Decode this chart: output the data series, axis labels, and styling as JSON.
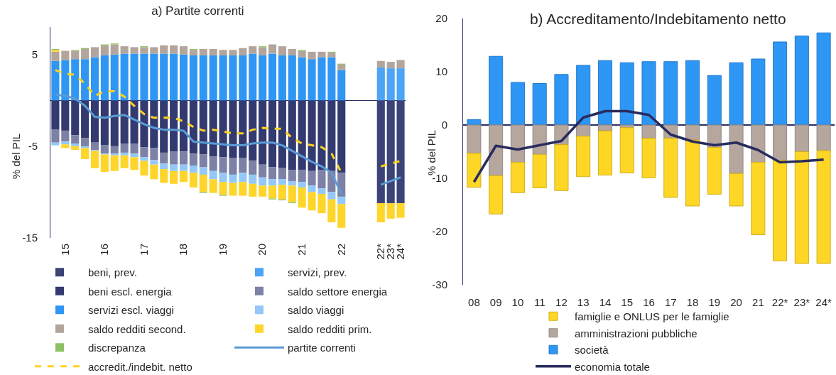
{
  "chart_data": [
    {
      "type": "bar",
      "title": "a) Partite correnti",
      "ylabel": "% del PIL",
      "stacked": true,
      "legend": "bottom",
      "ylim": [
        -15,
        8
      ],
      "yticks": [
        -15,
        -5,
        5
      ],
      "categories": [
        null,
        "15",
        null,
        null,
        null,
        "16",
        null,
        null,
        null,
        "17",
        null,
        null,
        null,
        "18",
        null,
        null,
        null,
        "19",
        null,
        null,
        null,
        "20",
        null,
        null,
        null,
        "21",
        null,
        null,
        null,
        "22",
        null,
        null,
        null,
        "22*",
        "23*",
        "24*"
      ],
      "series": [
        {
          "name": "beni, prev.",
          "color": "#3b4377",
          "values": [
            null,
            null,
            null,
            null,
            null,
            null,
            null,
            null,
            null,
            null,
            null,
            null,
            null,
            null,
            null,
            null,
            null,
            null,
            null,
            null,
            null,
            null,
            null,
            null,
            null,
            null,
            null,
            null,
            null,
            null,
            null,
            null,
            null,
            -11.2,
            -11.2,
            -11.2
          ]
        },
        {
          "name": "servizi, prev.",
          "color": "#4da3f5",
          "values": [
            null,
            null,
            null,
            null,
            null,
            null,
            null,
            null,
            null,
            null,
            null,
            null,
            null,
            null,
            null,
            null,
            null,
            null,
            null,
            null,
            null,
            null,
            null,
            null,
            null,
            null,
            null,
            null,
            null,
            null,
            null,
            null,
            null,
            3.6,
            3.5,
            3.5
          ]
        },
        {
          "name": "beni escl. energia",
          "color": "#323a70",
          "values": [
            -3.2,
            -3.3,
            -3.8,
            -4.1,
            -4.6,
            -4.9,
            -5.0,
            -4.7,
            -4.7,
            -5.1,
            -5.2,
            -5.7,
            -5.6,
            -5.6,
            -5.8,
            -5.9,
            -6.1,
            -6.2,
            -6.3,
            -6.3,
            -6.6,
            -7.0,
            -7.3,
            -7.4,
            -7.6,
            -7.6,
            -7.7,
            -7.6,
            -7.7,
            -7.9,
            null,
            null,
            null,
            null,
            null,
            null
          ]
        },
        {
          "name": "saldo settore energia",
          "color": "#7c81a5",
          "values": [
            -1.4,
            -1.2,
            -0.9,
            -0.9,
            -0.8,
            -0.9,
            -0.8,
            -1.0,
            -1.1,
            -1.1,
            -1.3,
            -1.2,
            -1.4,
            -1.4,
            -1.3,
            -1.4,
            -1.6,
            -1.7,
            -1.8,
            -1.6,
            -1.5,
            -1.4,
            -1.3,
            -1.2,
            -1.2,
            -1.3,
            -1.6,
            -2.0,
            -2.3,
            -2.6,
            null,
            null,
            null,
            null,
            null,
            null
          ]
        },
        {
          "name": "servizi escl. viaggi",
          "color": "#2f96f4",
          "values": [
            4.3,
            4.4,
            4.5,
            4.5,
            4.7,
            4.9,
            5.0,
            5.1,
            5.1,
            5.1,
            5.1,
            5.1,
            5.1,
            5.0,
            4.9,
            4.9,
            4.9,
            4.9,
            4.9,
            4.9,
            5.1,
            4.9,
            5.1,
            4.9,
            4.9,
            4.7,
            4.5,
            4.7,
            4.7,
            3.3,
            null,
            null,
            null,
            null,
            null,
            null
          ]
        },
        {
          "name": "saldo viaggi",
          "color": "#93c8f8",
          "values": [
            -0.3,
            -0.3,
            -0.3,
            -0.2,
            -0.1,
            -0.1,
            -0.2,
            -0.3,
            -0.4,
            -0.4,
            -0.5,
            -0.6,
            -0.7,
            -0.7,
            -0.8,
            -0.8,
            -0.9,
            -1.0,
            -0.9,
            -1.0,
            -1.0,
            -0.9,
            -0.7,
            -0.6,
            -0.5,
            -0.6,
            -0.7,
            -0.6,
            -0.8,
            -0.8,
            null,
            null,
            null,
            null,
            null,
            null
          ]
        },
        {
          "name": "saldo redditi second.",
          "color": "#b3a59c",
          "values": [
            1.0,
            1.0,
            0.9,
            1.1,
            1.1,
            1.1,
            1.1,
            0.8,
            0.7,
            0.7,
            0.7,
            0.9,
            0.9,
            0.9,
            0.6,
            0.7,
            0.7,
            0.6,
            0.6,
            0.8,
            0.8,
            0.9,
            1.0,
            1.0,
            0.7,
            0.7,
            0.8,
            0.6,
            0.5,
            0.6,
            null,
            null,
            null,
            0.7,
            0.7,
            0.9
          ]
        },
        {
          "name": "saldo redditi prim.",
          "color": "#fed52b",
          "values": [
            0.2,
            -0.4,
            -0.4,
            -1.2,
            -1.9,
            -1.9,
            -1.7,
            -1.4,
            -1.4,
            -1.6,
            -1.6,
            -1.5,
            -1.4,
            -1.2,
            -1.6,
            -1.9,
            -1.5,
            -1.4,
            -1.4,
            -1.5,
            -1.4,
            -1.2,
            -1.4,
            -1.6,
            -1.8,
            -2.2,
            -2.0,
            -2.1,
            -2.5,
            -2.6,
            null,
            null,
            null,
            -2.1,
            -1.7,
            -1.6
          ]
        },
        {
          "name": "discrepanza",
          "color": "#8fc065",
          "values": [
            0.1,
            null,
            0.1,
            0.1,
            null,
            0.1,
            0.1,
            null,
            null,
            0.1,
            null,
            null,
            null,
            null,
            0.1,
            -0.1,
            null,
            -0.1,
            null,
            null,
            null,
            0.1,
            -0.1,
            -0.1,
            -0.1,
            0.1,
            null,
            null,
            0.1,
            0.1,
            null,
            null,
            null,
            null,
            null,
            null
          ]
        },
        {
          "name": "partite correnti",
          "type": "line",
          "color": "#5b9bd5",
          "values": [
            0.6,
            0.5,
            0.2,
            -0.6,
            -1.8,
            -1.9,
            -1.7,
            -1.6,
            -2.1,
            -2.6,
            -3.0,
            -3.2,
            -3.2,
            -3.3,
            -4.5,
            -4.6,
            -4.7,
            -4.8,
            -4.9,
            -4.9,
            -4.7,
            -4.6,
            -4.6,
            -4.9,
            -5.5,
            -6.1,
            -6.7,
            -7.2,
            -7.9,
            -10.2,
            null,
            null,
            null,
            -9.2,
            -8.8,
            -8.4
          ]
        },
        {
          "name": "accredit./indebit. netto",
          "type": "line",
          "line_style": "dashed",
          "color": "#ffd21f",
          "values": [
            3.3,
            2.9,
            2.8,
            1.8,
            0.5,
            1.0,
            1.0,
            0.4,
            -0.6,
            -1.5,
            -1.9,
            -1.9,
            -1.9,
            -2.3,
            -2.9,
            -3.3,
            -3.2,
            -3.4,
            -3.6,
            -3.6,
            -3.2,
            -3.0,
            -3.1,
            -3.1,
            -4.1,
            -4.7,
            -4.9,
            -5.1,
            -5.8,
            -7.9,
            null,
            null,
            null,
            -7.2,
            -6.9,
            -6.6
          ]
        }
      ]
    },
    {
      "type": "bar",
      "title": "b) Accreditamento/Indebitamento netto",
      "ylabel": "% del PIL",
      "stacked": true,
      "legend": "bottom",
      "ylim": [
        -30,
        20
      ],
      "yticks": [
        -30,
        -20,
        -10,
        0,
        10,
        20
      ],
      "categories": [
        "08",
        "09",
        "10",
        "11",
        "12",
        "13",
        "14",
        "15",
        "16",
        "17",
        "18",
        "19",
        "20",
        "21",
        "22*",
        "23*",
        "24*"
      ],
      "series": [
        {
          "name": "società",
          "color": "#2e96f5",
          "values": [
            1.0,
            12.9,
            8.0,
            7.8,
            9.5,
            11.2,
            12.1,
            11.7,
            11.9,
            11.9,
            12.1,
            9.3,
            11.7,
            12.4,
            15.6,
            16.7,
            17.3
          ]
        },
        {
          "name": "amministrazioni pubbliche",
          "color": "#b5a69e",
          "values": [
            -5.3,
            -9.5,
            -7.0,
            -5.5,
            -3.7,
            -2.1,
            -1.1,
            -0.5,
            -2.5,
            -2.5,
            -2.8,
            -4.2,
            -9.1,
            -7.0,
            -6.6,
            -5.0,
            -4.8
          ]
        },
        {
          "name": "famiglie e ONLUS per le famiglie",
          "color": "#fed626",
          "values": [
            -6.4,
            -7.2,
            -5.7,
            -6.3,
            -8.6,
            -7.6,
            -8.3,
            -8.5,
            -7.4,
            -11.1,
            -12.4,
            -8.8,
            -6.1,
            -13.6,
            -18.9,
            -21.0,
            -21.2
          ]
        },
        {
          "name": "economia totale",
          "type": "line",
          "color": "#282c5e",
          "values": [
            -10.7,
            -3.9,
            -4.6,
            -3.8,
            -3.0,
            1.4,
            2.6,
            2.6,
            1.9,
            -1.8,
            -3.1,
            -3.8,
            -3.3,
            -4.7,
            -7.0,
            -6.8,
            -6.5
          ]
        }
      ]
    }
  ]
}
